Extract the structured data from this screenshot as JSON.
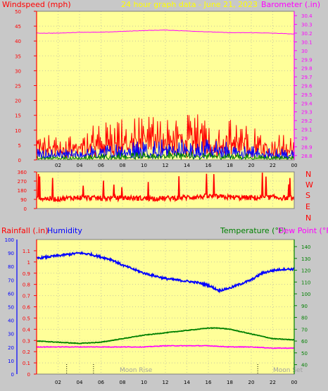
{
  "header": {
    "left": "Windspeed (mph)",
    "center": "24 hour graph data - June 21, 2023",
    "right": "Barometer (.in)"
  },
  "colors": {
    "plot_bg": "#ffff99",
    "wind": "#ff0000",
    "gust": "#0000ff",
    "avg": "#008000",
    "baro": "#ff00ff",
    "rain": "#ff0000",
    "humidity": "#0000ff",
    "temp": "#008000",
    "dew": "#ff00ff",
    "moon": "#a0a0a0"
  },
  "direction_labels": [
    "N",
    "W",
    "S",
    "E",
    "N"
  ],
  "lower_header": {
    "rainfall": "Rainfall (.in)",
    "humidity": "Humidity",
    "temperature": "Temperature (°F)",
    "dewpoint": "Dew Point (°F)"
  },
  "moon": {
    "rise": "Moon Rise",
    "set": "Moon Set"
  },
  "chart_data": [
    {
      "type": "line",
      "x_ticks": [
        "02",
        "04",
        "06",
        "08",
        "10",
        "12",
        "14",
        "16",
        "18",
        "20",
        "22",
        "00"
      ],
      "left_axis": {
        "ticks": [
          "0",
          "5",
          "10",
          "15",
          "20",
          "25",
          "30",
          "35",
          "40",
          "45",
          "50"
        ],
        "ylim": [
          0,
          50
        ]
      },
      "right_axis": {
        "ticks": [
          "28.8",
          "28.9",
          "29",
          "29.1",
          "29.2",
          "29.3",
          "29.4",
          "29.5",
          "29.6",
          "29.7",
          "29.8",
          "29.9",
          "30",
          "30.1",
          "30.2",
          "30.3",
          "30.4"
        ],
        "ylim": [
          28.75,
          30.45
        ]
      },
      "series": [
        {
          "key": "wind_max",
          "hours": [
            0,
            2,
            4,
            6,
            8,
            10,
            12,
            14,
            16,
            18,
            20,
            22,
            24
          ],
          "values": [
            7,
            6,
            7,
            9,
            10,
            11,
            12,
            11,
            11,
            10,
            8,
            7,
            6
          ]
        },
        {
          "key": "wind_mid",
          "hours": [
            0,
            2,
            4,
            6,
            8,
            10,
            12,
            14,
            16,
            18,
            20,
            22,
            24
          ],
          "values": [
            3,
            2.5,
            3,
            4,
            4.5,
            5,
            5.5,
            5,
            5,
            4.5,
            3.5,
            3,
            2.5
          ]
        },
        {
          "key": "wind_avg",
          "hours": [
            0,
            2,
            4,
            6,
            8,
            10,
            12,
            14,
            16,
            18,
            20,
            22,
            24
          ],
          "values": [
            1,
            1,
            1,
            1.5,
            2,
            2,
            2.5,
            2,
            2,
            2,
            1.5,
            1,
            1
          ]
        },
        {
          "key": "barometer",
          "hours": [
            0,
            2,
            4,
            6,
            8,
            10,
            12,
            14,
            16,
            18,
            20,
            22,
            24
          ],
          "values": [
            30.2,
            30.2,
            30.21,
            30.21,
            30.22,
            30.23,
            30.235,
            30.225,
            30.215,
            30.205,
            30.205,
            30.2,
            30.19
          ]
        }
      ]
    },
    {
      "type": "line",
      "x_ticks": [
        "02",
        "04",
        "06",
        "08",
        "10",
        "12",
        "14",
        "16",
        "18",
        "20",
        "22",
        "00"
      ],
      "left_axis": {
        "ticks": [
          "0",
          "90",
          "180",
          "270",
          "360"
        ],
        "ylim": [
          0,
          360
        ]
      },
      "series": [
        {
          "key": "wind_direction",
          "hours": [
            0,
            2,
            4,
            6,
            8,
            10,
            12,
            14,
            16,
            18,
            20,
            22,
            24
          ],
          "values": [
            100,
            95,
            110,
            100,
            105,
            100,
            100,
            110,
            120,
            110,
            105,
            110,
            100
          ]
        }
      ]
    },
    {
      "type": "line",
      "x_ticks": [
        "02",
        "04",
        "06",
        "08",
        "10",
        "12",
        "14",
        "16",
        "18",
        "20",
        "22",
        "00"
      ],
      "rain_axis": {
        "ticks": [
          "0",
          "0.1",
          "0.2",
          "0.3",
          "0.4",
          "0.5",
          "0.6",
          "0.7",
          "0.8",
          "0.9",
          "1",
          "1.1"
        ],
        "ylim": [
          0,
          1.2
        ]
      },
      "humidity_axis": {
        "ticks": [
          "0",
          "10",
          "20",
          "30",
          "40",
          "50",
          "60",
          "70",
          "80",
          "90",
          "100"
        ],
        "ylim": [
          0,
          100
        ]
      },
      "temp_axis": {
        "ticks": [
          "40",
          "50",
          "60",
          "70",
          "80",
          "90",
          "100",
          "110",
          "120",
          "130",
          "140"
        ],
        "ylim": [
          32,
          146
        ]
      },
      "series": [
        {
          "key": "humidity",
          "hours": [
            0,
            1,
            2,
            3,
            4,
            5,
            6,
            7,
            8,
            9,
            10,
            11,
            12,
            13,
            14,
            15,
            16,
            17,
            18,
            19,
            20,
            21,
            22,
            23,
            24
          ],
          "values": [
            86,
            87,
            88,
            89,
            90,
            89,
            87,
            85,
            81,
            78,
            75,
            73,
            71,
            70,
            69,
            68,
            66,
            62,
            64,
            67,
            70,
            75,
            77,
            78,
            78
          ]
        },
        {
          "key": "temperature",
          "hours": [
            0,
            2,
            4,
            6,
            8,
            10,
            12,
            14,
            16,
            17,
            18,
            20,
            22,
            24
          ],
          "values": [
            60,
            59,
            58,
            59,
            62,
            65,
            67,
            69,
            71,
            71,
            70,
            66,
            62,
            61
          ]
        },
        {
          "key": "dew_point",
          "hours": [
            0,
            2,
            4,
            6,
            8,
            10,
            12,
            14,
            16,
            18,
            20,
            22,
            24
          ],
          "values": [
            55,
            55,
            55,
            55,
            55,
            55,
            56,
            56,
            56,
            55,
            55,
            54,
            54
          ]
        },
        {
          "key": "rainfall",
          "hours": [
            0,
            24
          ],
          "values": [
            0,
            0
          ]
        }
      ],
      "moon_rise_hour": 6.6,
      "moon_set_hour": 22.8,
      "dotted_marks_hours": [
        2.8,
        5.3,
        20.6
      ]
    }
  ]
}
